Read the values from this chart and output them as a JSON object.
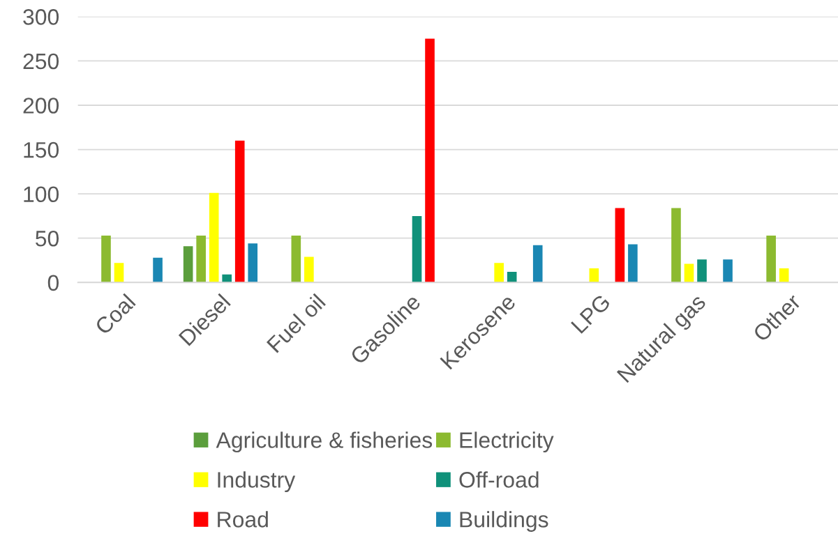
{
  "chart_data": {
    "type": "bar",
    "categories": [
      "Coal",
      "Diesel",
      "Fuel oil",
      "Gasoline",
      "Kerosene",
      "LPG",
      "Natural gas",
      "Other"
    ],
    "series": [
      {
        "name": "Agriculture & fisheries",
        "color": "#5b9e3c",
        "values": [
          null,
          41,
          null,
          null,
          null,
          null,
          null,
          null
        ]
      },
      {
        "name": "Electricity",
        "color": "#8cba30",
        "values": [
          53,
          53,
          53,
          null,
          null,
          null,
          84,
          53
        ]
      },
      {
        "name": "Industry",
        "color": "#ffff00",
        "values": [
          22,
          101,
          29,
          null,
          22,
          16,
          21,
          16
        ]
      },
      {
        "name": "Off-road",
        "color": "#10917a",
        "values": [
          null,
          9,
          null,
          75,
          12,
          null,
          26,
          null
        ]
      },
      {
        "name": "Road",
        "color": "#ff0000",
        "values": [
          null,
          160,
          null,
          275,
          null,
          84,
          null,
          null
        ]
      },
      {
        "name": "Buildings",
        "color": "#1a87b3",
        "values": [
          28,
          44,
          null,
          null,
          42,
          43,
          26,
          null
        ]
      }
    ],
    "ylim": [
      0,
      300
    ],
    "yticks": [
      0,
      50,
      100,
      150,
      200,
      250,
      300
    ],
    "grid": "y",
    "legend": "bottom"
  }
}
